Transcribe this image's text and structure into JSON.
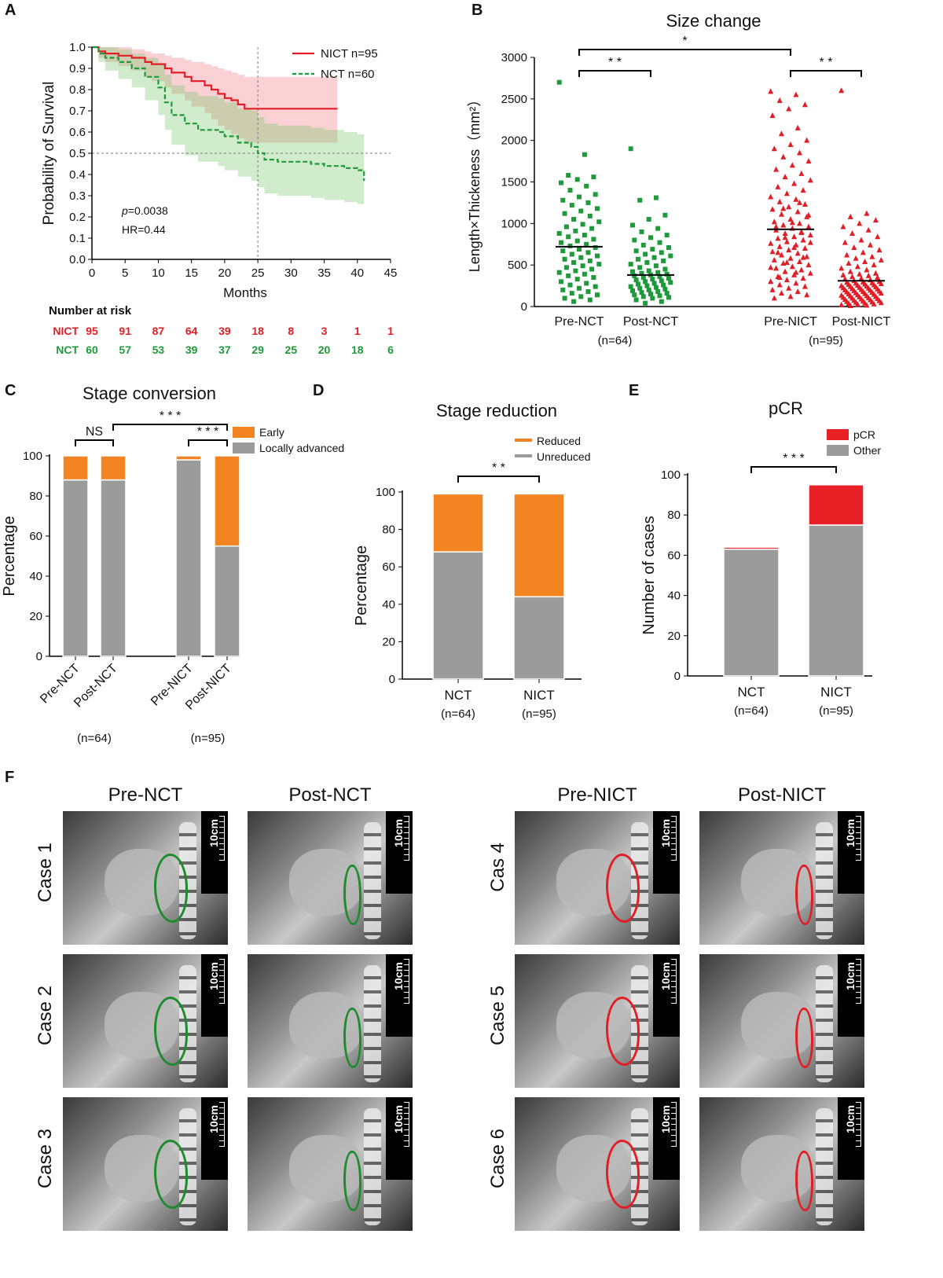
{
  "panels": {
    "A": "A",
    "B": "B",
    "C": "C",
    "D": "D",
    "E": "E",
    "F": "F"
  },
  "colors": {
    "red": "#e11e26",
    "green": "#1f9a3a",
    "orange": "#f28522",
    "grey": "#9b9b9b",
    "pcr_red": "#e82127",
    "black": "#000000"
  },
  "chart_data": [
    {
      "id": "A",
      "type": "line",
      "xlabel": "Months",
      "ylabel": "Probability of Survival",
      "xlim": [
        0,
        45
      ],
      "ylim": [
        0,
        1.0
      ],
      "xticks": [
        "0",
        "5",
        "10",
        "15",
        "20",
        "25",
        "30",
        "35",
        "40",
        "45"
      ],
      "yticks": [
        "0.0",
        "0.1",
        "0.2",
        "0.3",
        "0.4",
        "0.5",
        "0.6",
        "0.7",
        "0.8",
        "0.9",
        "1.0"
      ],
      "legend": [
        {
          "name": "NICT n=95"
        },
        {
          "name": "NCT  n=60"
        }
      ],
      "annotations": {
        "p": "=0.0038",
        "p_label": "p",
        "hr": "HR=0.44"
      },
      "series": [
        {
          "name": "NICT",
          "x": [
            0,
            1,
            2,
            4,
            6,
            8,
            9,
            11,
            12,
            14,
            15,
            17,
            18,
            19,
            20,
            21,
            22,
            23,
            24,
            25,
            30,
            37
          ],
          "y": [
            1.0,
            0.98,
            0.97,
            0.96,
            0.95,
            0.93,
            0.92,
            0.9,
            0.88,
            0.86,
            0.84,
            0.82,
            0.8,
            0.78,
            0.76,
            0.75,
            0.73,
            0.71,
            0.71,
            0.71,
            0.71,
            0.71
          ],
          "lo": [
            1.0,
            0.95,
            0.93,
            0.91,
            0.89,
            0.86,
            0.84,
            0.81,
            0.78,
            0.75,
            0.72,
            0.69,
            0.66,
            0.63,
            0.61,
            0.59,
            0.57,
            0.55,
            0.55,
            0.55,
            0.55,
            0.55
          ],
          "hi": [
            1.0,
            1.0,
            1.0,
            1.0,
            0.99,
            0.98,
            0.97,
            0.96,
            0.95,
            0.94,
            0.93,
            0.92,
            0.91,
            0.9,
            0.89,
            0.88,
            0.87,
            0.86,
            0.86,
            0.86,
            0.86,
            0.86
          ]
        },
        {
          "name": "NCT",
          "x": [
            0,
            1,
            2,
            4,
            6,
            8,
            10,
            11,
            12,
            14,
            16,
            19,
            20,
            22,
            24,
            25,
            26,
            28,
            30,
            33,
            35,
            38,
            40,
            41
          ],
          "y": [
            1.0,
            0.97,
            0.95,
            0.93,
            0.9,
            0.86,
            0.81,
            0.74,
            0.68,
            0.64,
            0.61,
            0.6,
            0.58,
            0.55,
            0.53,
            0.5,
            0.47,
            0.46,
            0.46,
            0.45,
            0.44,
            0.43,
            0.42,
            0.37
          ],
          "lo": [
            1.0,
            0.93,
            0.89,
            0.85,
            0.81,
            0.75,
            0.68,
            0.61,
            0.54,
            0.49,
            0.46,
            0.44,
            0.42,
            0.39,
            0.37,
            0.34,
            0.31,
            0.3,
            0.3,
            0.29,
            0.28,
            0.27,
            0.26,
            0.2
          ],
          "hi": [
            1.0,
            1.0,
            1.0,
            0.99,
            0.97,
            0.95,
            0.92,
            0.87,
            0.82,
            0.79,
            0.77,
            0.76,
            0.74,
            0.71,
            0.7,
            0.67,
            0.64,
            0.63,
            0.63,
            0.62,
            0.61,
            0.6,
            0.59,
            0.55
          ]
        }
      ],
      "risk_table": {
        "title": "Number at risk",
        "rows": [
          {
            "label": "NICT",
            "values": [
              "95",
              "91",
              "87",
              "64",
              "39",
              "18",
              "8",
              "3",
              "1",
              "1"
            ]
          },
          {
            "label": "NCT",
            "values": [
              "60",
              "57",
              "53",
              "39",
              "37",
              "29",
              "25",
              "20",
              "18",
              "6"
            ]
          }
        ]
      }
    },
    {
      "id": "B",
      "type": "scatter",
      "title": "Size change",
      "ylabel": "Length×Thickeness（mm²）",
      "ylim": [
        0,
        3000
      ],
      "yticks": [
        "0",
        "500",
        "1000",
        "1500",
        "2000",
        "2500",
        "3000"
      ],
      "categories": [
        "Pre-NCT",
        "Post-NCT",
        "Pre-NICT",
        "Post-NICT"
      ],
      "groups": [
        "(n=64)",
        "(n=95)"
      ],
      "medians": [
        720,
        380,
        930,
        310
      ],
      "significance": [
        {
          "label": "* *",
          "from": 0,
          "to": 1
        },
        {
          "label": "*",
          "from": 0,
          "to": 2
        },
        {
          "label": "* *",
          "from": 2,
          "to": 3
        }
      ],
      "series": [
        {
          "name": "Pre-NCT",
          "values": [
            2700,
            1830,
            1580,
            1560,
            1530,
            1490,
            1450,
            1400,
            1350,
            1320,
            1280,
            1250,
            1220,
            1180,
            1150,
            1120,
            1090,
            1050,
            1020,
            990,
            960,
            940,
            910,
            880,
            860,
            840,
            810,
            790,
            770,
            750,
            730,
            710,
            690,
            670,
            650,
            630,
            610,
            590,
            570,
            550,
            530,
            510,
            490,
            470,
            450,
            430,
            410,
            390,
            370,
            350,
            330,
            300,
            280,
            260,
            240,
            220,
            200,
            180,
            160,
            140,
            120,
            100,
            80,
            60
          ]
        },
        {
          "name": "Post-NCT",
          "values": [
            1900,
            1310,
            1280,
            1100,
            1050,
            980,
            940,
            900,
            860,
            830,
            800,
            770,
            740,
            710,
            690,
            670,
            650,
            630,
            610,
            590,
            570,
            550,
            530,
            510,
            490,
            470,
            450,
            430,
            420,
            410,
            400,
            390,
            380,
            370,
            360,
            350,
            340,
            330,
            320,
            310,
            300,
            290,
            280,
            270,
            260,
            250,
            240,
            230,
            220,
            210,
            200,
            190,
            180,
            170,
            160,
            150,
            140,
            130,
            120,
            110,
            100,
            80,
            60,
            40
          ]
        },
        {
          "name": "Pre-NICT",
          "values": [
            2590,
            2550,
            2480,
            2430,
            2380,
            2300,
            2150,
            2080,
            2000,
            1950,
            1900,
            1850,
            1800,
            1750,
            1700,
            1650,
            1600,
            1560,
            1520,
            1480,
            1440,
            1400,
            1360,
            1320,
            1290,
            1260,
            1230,
            1200,
            1170,
            1140,
            1110,
            1080,
            1050,
            1020,
            1000,
            980,
            960,
            940,
            920,
            900,
            880,
            860,
            840,
            820,
            800,
            780,
            760,
            740,
            720,
            700,
            680,
            660,
            640,
            620,
            600,
            580,
            560,
            540,
            520,
            500,
            480,
            460,
            440,
            420,
            400,
            380,
            360,
            340,
            320,
            300,
            280,
            260,
            240,
            220,
            200,
            180,
            160,
            140,
            120,
            100,
            1250,
            1180,
            1100,
            1010,
            960,
            890,
            830,
            770,
            710,
            650,
            590,
            530,
            470,
            410,
            350
          ]
        },
        {
          "name": "Post-NICT",
          "values": [
            2600,
            1120,
            1080,
            1040,
            1000,
            960,
            920,
            880,
            840,
            800,
            770,
            740,
            710,
            680,
            650,
            620,
            600,
            580,
            560,
            540,
            520,
            500,
            480,
            460,
            440,
            420,
            400,
            390,
            380,
            370,
            360,
            350,
            340,
            330,
            320,
            310,
            300,
            295,
            290,
            285,
            280,
            275,
            270,
            265,
            260,
            255,
            250,
            245,
            240,
            235,
            230,
            225,
            220,
            215,
            210,
            205,
            200,
            195,
            190,
            185,
            180,
            175,
            170,
            165,
            160,
            155,
            150,
            145,
            140,
            135,
            130,
            125,
            120,
            115,
            110,
            105,
            100,
            95,
            90,
            85,
            80,
            75,
            70,
            65,
            60,
            55,
            50,
            45,
            40,
            35,
            30,
            25,
            20,
            15,
            10
          ]
        }
      ]
    },
    {
      "id": "C",
      "type": "bar",
      "stacked": true,
      "title": "Stage conversion",
      "ylabel": "Percentage",
      "ylim": [
        0,
        100
      ],
      "yticks": [
        "0",
        "20",
        "40",
        "60",
        "80",
        "100"
      ],
      "categories": [
        "Pre-NCT",
        "Post-NCT",
        "Pre-NICT",
        "Post-NICT"
      ],
      "groups": [
        "(n=64)",
        "(n=95)"
      ],
      "legend": [
        "Early",
        "Locally advanced"
      ],
      "series": [
        {
          "name": "Locally advanced",
          "values": [
            88,
            88,
            98,
            55
          ]
        },
        {
          "name": "Early",
          "values": [
            12,
            12,
            2,
            45
          ]
        }
      ],
      "significance": [
        {
          "label": "NS",
          "from": 0,
          "to": 1
        },
        {
          "label": "* * *",
          "from": 1,
          "to": 3
        },
        {
          "label": "* * *",
          "from": 2,
          "to": 3
        }
      ]
    },
    {
      "id": "D",
      "type": "bar",
      "stacked": true,
      "title": "Stage reduction",
      "ylabel": "Percentage",
      "ylim": [
        0,
        100
      ],
      "yticks": [
        "0",
        "20",
        "40",
        "60",
        "80",
        "100"
      ],
      "categories": [
        "NCT",
        "NICT"
      ],
      "groups": [
        "(n=64)",
        "(n=95)"
      ],
      "legend": [
        "Reduced",
        "Unreduced"
      ],
      "series": [
        {
          "name": "Unreduced",
          "values": [
            68,
            44
          ]
        },
        {
          "name": "Reduced",
          "values": [
            31,
            55
          ]
        }
      ],
      "significance": [
        {
          "label": "* *",
          "from": 0,
          "to": 1
        }
      ]
    },
    {
      "id": "E",
      "type": "bar",
      "stacked": true,
      "title": "pCR",
      "ylabel": "Number of cases",
      "ylim": [
        0,
        100
      ],
      "yticks": [
        "0",
        "20",
        "40",
        "60",
        "80",
        "100"
      ],
      "categories": [
        "NCT",
        "NICT"
      ],
      "groups": [
        "(n=64)",
        "(n=95)"
      ],
      "legend": [
        "pCR",
        "Other"
      ],
      "series": [
        {
          "name": "Other",
          "values": [
            63,
            75
          ]
        },
        {
          "name": "pCR",
          "values": [
            1,
            20
          ]
        }
      ],
      "significance": [
        {
          "label": "* * *",
          "from": 0,
          "to": 1
        }
      ]
    }
  ],
  "ct_panel": {
    "columns": [
      "Pre-NCT",
      "Post-NCT",
      "Pre-NICT",
      "Post-NICT"
    ],
    "cases": [
      "Case 1",
      "Case 2",
      "Case 3",
      "Cas 4",
      "Case 5",
      "Case 6"
    ],
    "scale_label": "10cm"
  }
}
